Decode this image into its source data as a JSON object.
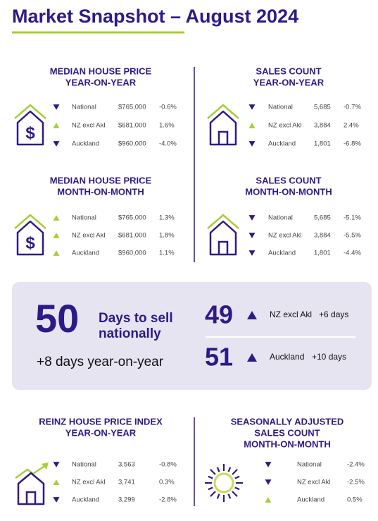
{
  "header": {
    "title": "Market Snapshot – August 2024"
  },
  "panels": [
    {
      "title_lines": [
        "MEDIAN HOUSE PRICE",
        "YEAR-ON-YEAR"
      ],
      "rows": [
        {
          "trend": "down",
          "region": "National",
          "value": "$765,000",
          "change": "-0.6%"
        },
        {
          "trend": "up",
          "region": "NZ excl Akl",
          "value": "$681,000",
          "change": "1.6%"
        },
        {
          "trend": "down",
          "region": "Auckland",
          "value": "$960,000",
          "change": "-4.0%"
        }
      ]
    },
    {
      "title_lines": [
        "SALES COUNT",
        "YEAR-ON-YEAR"
      ],
      "rows": [
        {
          "trend": "down",
          "region": "National",
          "value": "5,685",
          "change": "-0.7%"
        },
        {
          "trend": "up",
          "region": "NZ excl Akl",
          "value": "3,884",
          "change": "2.4%"
        },
        {
          "trend": "down",
          "region": "Auckland",
          "value": "1,801",
          "change": "-6.8%"
        }
      ]
    },
    {
      "title_lines": [
        "MEDIAN HOUSE PRICE",
        "MONTH-ON-MONTH"
      ],
      "rows": [
        {
          "trend": "up",
          "region": "National",
          "value": "$765,000",
          "change": "1.3%"
        },
        {
          "trend": "up",
          "region": "NZ excl Akl",
          "value": "$681,000",
          "change": "1.8%"
        },
        {
          "trend": "up",
          "region": "Auckland",
          "value": "$960,000",
          "change": "1.1%"
        }
      ]
    },
    {
      "title_lines": [
        "SALES COUNT",
        "MONTH-ON-MONTH"
      ],
      "rows": [
        {
          "trend": "down",
          "region": "National",
          "value": "5,685",
          "change": "-5.1%"
        },
        {
          "trend": "down",
          "region": "NZ excl Akl",
          "value": "3,884",
          "change": "-5.5%"
        },
        {
          "trend": "down",
          "region": "Auckland",
          "value": "1,801",
          "change": "-4.4%"
        }
      ]
    },
    {
      "title_lines": [
        "REINZ HOUSE PRICE INDEX",
        "YEAR-ON-YEAR"
      ],
      "rows": [
        {
          "trend": "down",
          "region": "National",
          "value": "3,563",
          "change": "-0.8%"
        },
        {
          "trend": "up",
          "region": "NZ excl Akl",
          "value": "3,741",
          "change": "0.3%"
        },
        {
          "trend": "down",
          "region": "Auckland",
          "value": "3,299",
          "change": "-2.8%"
        }
      ]
    },
    {
      "title_lines": [
        "SEASONALLY ADJUSTED",
        "SALES COUNT",
        "MONTH-ON-MONTH"
      ],
      "rows": [
        {
          "trend": "down",
          "region": "National",
          "change": "-2.4%"
        },
        {
          "trend": "down",
          "region": "NZ excl Akl",
          "change": "-2.5%"
        },
        {
          "trend": "up",
          "region": "Auckland",
          "change": "0.5%"
        }
      ]
    }
  ],
  "days_to_sell": {
    "headline": {
      "value": "50",
      "label_lines": [
        "Days to sell",
        "nationally"
      ],
      "yoy": "+8 days year-on-year"
    },
    "regions": [
      {
        "value": "49",
        "trend": "up",
        "region": "NZ excl Akl",
        "change": "+6 days"
      },
      {
        "value": "51",
        "trend": "up",
        "region": "Auckland",
        "change": "+10 days"
      }
    ]
  }
}
